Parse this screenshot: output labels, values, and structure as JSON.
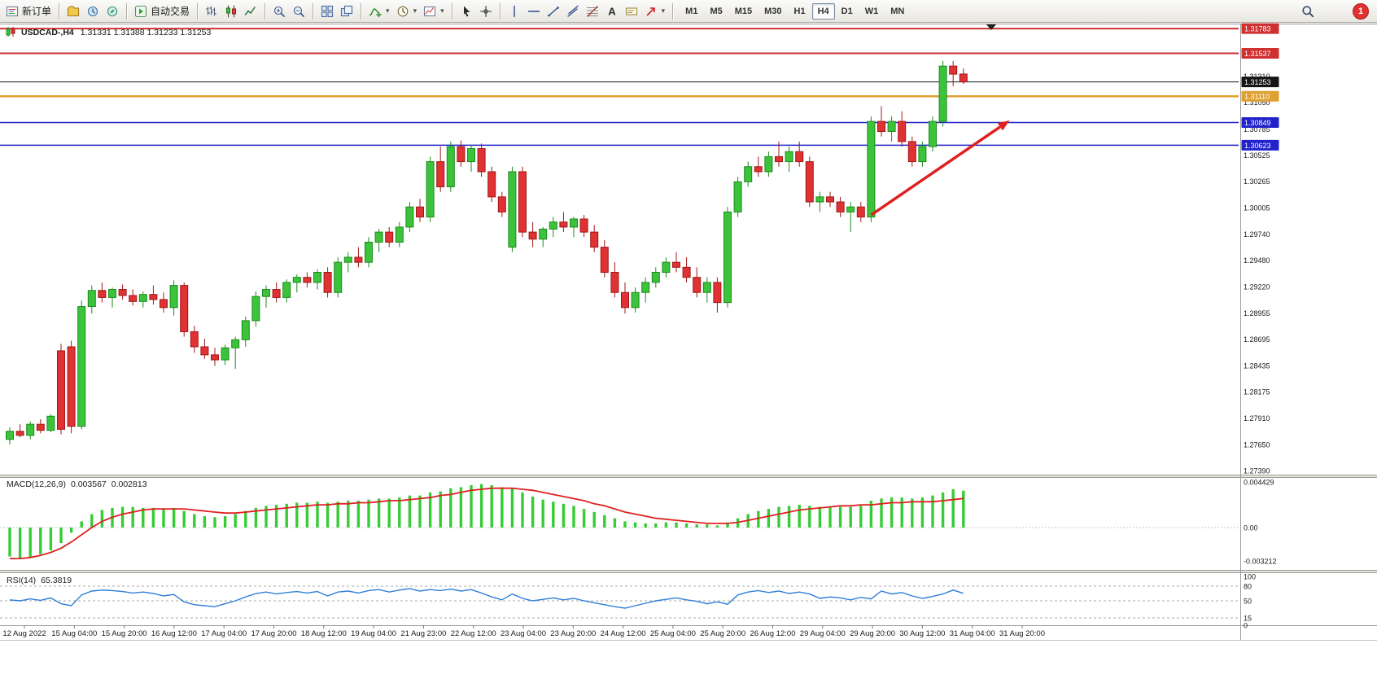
{
  "toolbar": {
    "new_order_label": "新订单",
    "auto_trading_label": "自动交易",
    "timeframes": [
      "M1",
      "M5",
      "M15",
      "M30",
      "H1",
      "H4",
      "D1",
      "W1",
      "MN"
    ],
    "active_timeframe": "H4",
    "notification_count": "1",
    "items": [
      {
        "type": "btn",
        "name": "new-order-button",
        "icon": "new-order",
        "label": "新订单"
      },
      {
        "type": "sep"
      },
      {
        "type": "btn",
        "name": "profiles-button",
        "icon": "profiles"
      },
      {
        "type": "btn",
        "name": "market-watch-button",
        "icon": "market-watch"
      },
      {
        "type": "btn",
        "name": "navigator-button",
        "icon": "navigator"
      },
      {
        "type": "sep"
      },
      {
        "type": "btn",
        "name": "auto-trading-button",
        "icon": "auto-trading",
        "label": "自动交易"
      },
      {
        "type": "sep"
      },
      {
        "type": "btn",
        "name": "bar-chart-button",
        "icon": "chart-bars"
      },
      {
        "type": "btn",
        "name": "candlestick-chart-button",
        "icon": "chart-candles"
      },
      {
        "type": "btn",
        "name": "line-chart-button",
        "icon": "chart-line"
      },
      {
        "type": "sep"
      },
      {
        "type": "btn",
        "name": "zoom-in-button",
        "icon": "zoom-in"
      },
      {
        "type": "btn",
        "name": "zoom-out-button",
        "icon": "zoom-out"
      },
      {
        "type": "sep"
      },
      {
        "type": "btn",
        "name": "tile-windows-button",
        "icon": "tile-windows"
      },
      {
        "type": "btn",
        "name": "cascade-windows-button",
        "icon": "cascade-windows"
      },
      {
        "type": "sep"
      },
      {
        "type": "btn",
        "name": "indicators-button",
        "icon": "indicators",
        "caret": true
      },
      {
        "type": "btn",
        "name": "periods-button",
        "icon": "periods",
        "caret": true
      },
      {
        "type": "btn",
        "name": "templates-button",
        "icon": "templates",
        "caret": true
      },
      {
        "type": "sep"
      },
      {
        "type": "btn",
        "name": "cursor-button",
        "icon": "cursor"
      },
      {
        "type": "btn",
        "name": "crosshair-button",
        "icon": "crosshair"
      },
      {
        "type": "sep"
      },
      {
        "type": "btn",
        "name": "vertical-line-button",
        "icon": "vline"
      },
      {
        "type": "btn",
        "name": "horizontal-line-button",
        "icon": "hline"
      },
      {
        "type": "btn",
        "name": "trendline-button",
        "icon": "trendline"
      },
      {
        "type": "btn",
        "name": "channel-button",
        "icon": "channel"
      },
      {
        "type": "btn",
        "name": "fibonacci-button",
        "icon": "fibo"
      },
      {
        "type": "btn",
        "name": "text-button",
        "icon": "text"
      },
      {
        "type": "btn",
        "name": "label-button",
        "icon": "label"
      },
      {
        "type": "btn",
        "name": "arrows-button",
        "icon": "arrows",
        "caret": true
      },
      {
        "type": "sep"
      },
      {
        "type": "tf"
      },
      {
        "type": "spacer"
      },
      {
        "type": "btn",
        "name": "search-button",
        "icon": "search"
      },
      {
        "type": "badge"
      }
    ]
  },
  "chart": {
    "symbol_period": "USDCAD-,H4",
    "ohlc_text": "1.31331 1.31388 1.31233 1.31253",
    "macd_name": "MACD(12,26,9)",
    "macd_value": "0.003567",
    "macd_signal": "0.002813",
    "rsi_name": "RSI(14)",
    "rsi_value": "65.3819"
  },
  "chart_data": {
    "type": "candlestick",
    "symbol": "USDCAD",
    "period": "H4",
    "price_range": {
      "top": 1.31824,
      "bottom": 1.2739
    },
    "price_axis_labels": [
      "1.31310",
      "1.31050",
      "1.30785",
      "1.30525",
      "1.30265",
      "1.30005",
      "1.29740",
      "1.29480",
      "1.29220",
      "1.28955",
      "1.28695",
      "1.28435",
      "1.28175",
      "1.27910",
      "1.27650",
      "1.27390"
    ],
    "line_levels": [
      {
        "value": 1.31783,
        "label": "1.31783",
        "color": "#cf3030",
        "width": 2
      },
      {
        "value": 1.31537,
        "label": "1.31537",
        "color": "#cf3030",
        "width": 2
      },
      {
        "value": 1.31253,
        "label": "1.31253",
        "color": "#151515",
        "width": 1
      },
      {
        "value": 1.3111,
        "label": "1.31110",
        "color": "#dfa032",
        "width": 2.5
      },
      {
        "value": 1.30849,
        "label": "1.30849",
        "color": "#2222cc",
        "width": 1.5
      },
      {
        "value": 1.30623,
        "label": "1.30623",
        "color": "#2222cc",
        "width": 1.5
      }
    ],
    "candles": [
      [
        1.277,
        1.2782,
        1.2765,
        1.2778
      ],
      [
        1.2778,
        1.2785,
        1.2772,
        1.2774
      ],
      [
        1.2774,
        1.2788,
        1.277,
        1.2785
      ],
      [
        1.2785,
        1.279,
        1.2776,
        1.2779
      ],
      [
        1.2779,
        1.2795,
        1.2777,
        1.2793
      ],
      [
        1.2858,
        1.2865,
        1.2775,
        1.278
      ],
      [
        1.2862,
        1.2868,
        1.2776,
        1.2783
      ],
      [
        1.2783,
        1.2908,
        1.278,
        1.2902
      ],
      [
        1.2902,
        1.2923,
        1.2895,
        1.2918
      ],
      [
        1.2918,
        1.2926,
        1.2906,
        1.2911
      ],
      [
        1.2911,
        1.2921,
        1.2901,
        1.2919
      ],
      [
        1.2919,
        1.2924,
        1.2909,
        1.2913
      ],
      [
        1.2913,
        1.2919,
        1.2903,
        1.2907
      ],
      [
        1.2907,
        1.2917,
        1.2901,
        1.2914
      ],
      [
        1.2914,
        1.2923,
        1.2904,
        1.2909
      ],
      [
        1.2909,
        1.2916,
        1.2896,
        1.2901
      ],
      [
        1.2901,
        1.2928,
        1.2893,
        1.2923
      ],
      [
        1.2923,
        1.2926,
        1.2872,
        1.2877
      ],
      [
        1.2877,
        1.2883,
        1.2856,
        1.2862
      ],
      [
        1.2862,
        1.287,
        1.285,
        1.2854
      ],
      [
        1.2854,
        1.2861,
        1.2843,
        1.2849
      ],
      [
        1.2849,
        1.2864,
        1.2844,
        1.2861
      ],
      [
        1.2861,
        1.2872,
        1.284,
        1.2869
      ],
      [
        1.2869,
        1.2892,
        1.2862,
        1.2888
      ],
      [
        1.2888,
        1.2917,
        1.2882,
        1.2912
      ],
      [
        1.2912,
        1.2923,
        1.2901,
        1.2919
      ],
      [
        1.2919,
        1.2926,
        1.2906,
        1.2911
      ],
      [
        1.2911,
        1.2929,
        1.2906,
        1.2926
      ],
      [
        1.2926,
        1.2934,
        1.2916,
        1.2931
      ],
      [
        1.2931,
        1.2936,
        1.2921,
        1.2926
      ],
      [
        1.2926,
        1.2939,
        1.2919,
        1.2936
      ],
      [
        1.2936,
        1.2941,
        1.2911,
        1.2916
      ],
      [
        1.2916,
        1.2951,
        1.2911,
        1.2946
      ],
      [
        1.2946,
        1.2956,
        1.2936,
        1.2951
      ],
      [
        1.2951,
        1.2961,
        1.2941,
        1.2946
      ],
      [
        1.2946,
        1.2971,
        1.2941,
        1.2966
      ],
      [
        1.2966,
        1.2979,
        1.2956,
        1.2976
      ],
      [
        1.2976,
        1.2981,
        1.2961,
        1.2966
      ],
      [
        1.2966,
        1.2986,
        1.2961,
        1.2981
      ],
      [
        1.2981,
        1.3006,
        1.2976,
        1.3001
      ],
      [
        1.3001,
        1.3009,
        1.2986,
        1.2991
      ],
      [
        1.2991,
        1.3051,
        1.2986,
        1.3046
      ],
      [
        1.3046,
        1.3061,
        1.3016,
        1.3021
      ],
      [
        1.3021,
        1.3066,
        1.3016,
        1.3061
      ],
      [
        1.3061,
        1.3067,
        1.3041,
        1.3046
      ],
      [
        1.3046,
        1.3063,
        1.3036,
        1.3059
      ],
      [
        1.3059,
        1.3064,
        1.3031,
        1.3036
      ],
      [
        1.3036,
        1.3041,
        1.3006,
        1.3011
      ],
      [
        1.3011,
        1.3016,
        1.2991,
        1.2996
      ],
      [
        1.2961,
        1.3041,
        1.2956,
        1.3036
      ],
      [
        1.3036,
        1.3041,
        1.2971,
        1.2976
      ],
      [
        1.2976,
        1.2986,
        1.2961,
        1.2969
      ],
      [
        1.2969,
        1.2981,
        1.2961,
        1.2979
      ],
      [
        1.2979,
        1.2991,
        1.2971,
        1.2986
      ],
      [
        1.2986,
        1.2996,
        1.2976,
        1.2981
      ],
      [
        1.2981,
        1.2991,
        1.2971,
        1.2989
      ],
      [
        1.2989,
        1.2993,
        1.2971,
        1.2976
      ],
      [
        1.2976,
        1.2983,
        1.2956,
        1.2961
      ],
      [
        1.2961,
        1.2968,
        1.2931,
        1.2936
      ],
      [
        1.2936,
        1.2946,
        1.2911,
        1.2916
      ],
      [
        1.2916,
        1.2926,
        1.2895,
        1.2901
      ],
      [
        1.2901,
        1.2921,
        1.2896,
        1.2916
      ],
      [
        1.2916,
        1.2931,
        1.2906,
        1.2926
      ],
      [
        1.2926,
        1.2941,
        1.2921,
        1.2936
      ],
      [
        1.2936,
        1.2951,
        1.2931,
        1.2946
      ],
      [
        1.2946,
        1.2956,
        1.2936,
        1.2941
      ],
      [
        1.2941,
        1.2951,
        1.2926,
        1.2931
      ],
      [
        1.2931,
        1.2941,
        1.2911,
        1.2916
      ],
      [
        1.2916,
        1.2931,
        1.2906,
        1.2926
      ],
      [
        1.2926,
        1.2931,
        1.2896,
        1.2906
      ],
      [
        1.2906,
        1.3001,
        1.2901,
        1.2996
      ],
      [
        1.2996,
        1.3031,
        1.2991,
        1.3026
      ],
      [
        1.3026,
        1.3046,
        1.3021,
        1.3041
      ],
      [
        1.3041,
        1.3051,
        1.3031,
        1.3036
      ],
      [
        1.3036,
        1.3056,
        1.3031,
        1.3051
      ],
      [
        1.3051,
        1.3066,
        1.3041,
        1.3046
      ],
      [
        1.3046,
        1.3061,
        1.3036,
        1.3056
      ],
      [
        1.3056,
        1.3066,
        1.3041,
        1.3046
      ],
      [
        1.3046,
        1.3051,
        1.3001,
        1.3006
      ],
      [
        1.3006,
        1.3016,
        1.2996,
        1.3011
      ],
      [
        1.3011,
        1.3016,
        1.3001,
        1.3006
      ],
      [
        1.3006,
        1.3011,
        1.2991,
        1.2996
      ],
      [
        1.2996,
        1.3006,
        1.2976,
        1.3001
      ],
      [
        1.3001,
        1.3006,
        1.2986,
        1.2991
      ],
      [
        1.2991,
        1.3091,
        1.2986,
        1.3086
      ],
      [
        1.3086,
        1.3101,
        1.3071,
        1.3076
      ],
      [
        1.3076,
        1.3091,
        1.3066,
        1.3086
      ],
      [
        1.3086,
        1.3096,
        1.3061,
        1.3066
      ],
      [
        1.3066,
        1.3071,
        1.3041,
        1.3046
      ],
      [
        1.3046,
        1.3066,
        1.3041,
        1.3061
      ],
      [
        1.3061,
        1.3091,
        1.3056,
        1.3086
      ],
      [
        1.3086,
        1.3146,
        1.3081,
        1.3141
      ],
      [
        1.3141,
        1.3146,
        1.3121,
        1.3133
      ],
      [
        1.31331,
        1.31388,
        1.31233,
        1.31253
      ]
    ],
    "macd": {
      "histogram": [
        -0.0028,
        -0.003,
        -0.0029,
        -0.0026,
        -0.0022,
        -0.0015,
        -0.0005,
        0.0006,
        0.0013,
        0.0017,
        0.0019,
        0.002,
        0.002,
        0.0019,
        0.0019,
        0.0018,
        0.0019,
        0.0016,
        0.0013,
        0.0011,
        0.001,
        0.0011,
        0.0013,
        0.0016,
        0.0019,
        0.0021,
        0.0022,
        0.0023,
        0.0024,
        0.0024,
        0.0025,
        0.0024,
        0.0025,
        0.0026,
        0.0026,
        0.0027,
        0.0028,
        0.0028,
        0.0029,
        0.0031,
        0.0031,
        0.0034,
        0.0035,
        0.0038,
        0.0039,
        0.0041,
        0.0042,
        0.0041,
        0.0039,
        0.0038,
        0.0034,
        0.003,
        0.0027,
        0.0025,
        0.0023,
        0.0021,
        0.0018,
        0.0015,
        0.0012,
        0.0009,
        0.0006,
        0.0005,
        0.0004,
        0.0004,
        0.0005,
        0.0005,
        0.0004,
        0.0003,
        0.0003,
        0.0002,
        0.0005,
        0.0009,
        0.0013,
        0.0016,
        0.0018,
        0.002,
        0.0021,
        0.0022,
        0.0021,
        0.002,
        0.002,
        0.002,
        0.002,
        0.0021,
        0.0026,
        0.0028,
        0.0029,
        0.0029,
        0.0028,
        0.0029,
        0.0031,
        0.0034,
        0.0037,
        0.003567
      ],
      "signal": [
        -0.003,
        -0.003,
        -0.0029,
        -0.0027,
        -0.0024,
        -0.002,
        -0.0014,
        -0.0007,
        0.0,
        0.0006,
        0.001,
        0.0013,
        0.0015,
        0.0017,
        0.0018,
        0.0018,
        0.0018,
        0.0018,
        0.0017,
        0.0016,
        0.0015,
        0.0014,
        0.0014,
        0.0015,
        0.0016,
        0.0017,
        0.0018,
        0.0019,
        0.002,
        0.0021,
        0.0022,
        0.0022,
        0.0023,
        0.0023,
        0.0024,
        0.0024,
        0.0025,
        0.0026,
        0.0026,
        0.0027,
        0.0028,
        0.0029,
        0.0031,
        0.0032,
        0.0034,
        0.0036,
        0.0037,
        0.0038,
        0.0038,
        0.0038,
        0.0037,
        0.0036,
        0.0034,
        0.0032,
        0.003,
        0.0028,
        0.0026,
        0.0023,
        0.0021,
        0.0018,
        0.0015,
        0.0013,
        0.0011,
        0.0009,
        0.0008,
        0.0007,
        0.0006,
        0.0005,
        0.0004,
        0.0004,
        0.0004,
        0.0005,
        0.0007,
        0.0009,
        0.0011,
        0.0013,
        0.0015,
        0.0017,
        0.0018,
        0.0019,
        0.002,
        0.0021,
        0.0021,
        0.0022,
        0.0022,
        0.0023,
        0.0024,
        0.0024,
        0.0025,
        0.0025,
        0.0025,
        0.0026,
        0.0027,
        0.002813
      ],
      "axis_labels": [
        "0.004429",
        "0.00",
        "-0.003212"
      ]
    },
    "rsi": {
      "values": [
        52,
        50,
        54,
        51,
        56,
        44,
        40,
        62,
        70,
        72,
        71,
        69,
        66,
        68,
        65,
        60,
        63,
        48,
        42,
        40,
        38,
        44,
        50,
        58,
        65,
        68,
        64,
        67,
        69,
        66,
        69,
        60,
        68,
        70,
        66,
        71,
        73,
        68,
        72,
        75,
        70,
        73,
        71,
        74,
        70,
        73,
        66,
        58,
        52,
        64,
        55,
        50,
        53,
        56,
        52,
        55,
        50,
        46,
        42,
        38,
        35,
        40,
        45,
        50,
        53,
        56,
        52,
        49,
        44,
        48,
        43,
        62,
        68,
        71,
        67,
        70,
        65,
        68,
        64,
        55,
        58,
        56,
        52,
        57,
        54,
        70,
        64,
        67,
        60,
        55,
        59,
        64,
        72,
        65.3819
      ],
      "levels": [
        80,
        50,
        15
      ],
      "axis_labels": [
        "100",
        "80",
        "50",
        "15",
        "0"
      ]
    },
    "time_labels": [
      "12 Aug 2022",
      "15 Aug 04:00",
      "15 Aug 20:00",
      "16 Aug 12:00",
      "17 Aug 04:00",
      "17 Aug 20:00",
      "18 Aug 12:00",
      "19 Aug 04:00",
      "21 Aug 23:00",
      "22 Aug 12:00",
      "23 Aug 04:00",
      "23 Aug 20:00",
      "24 Aug 12:00",
      "25 Aug 04:00",
      "25 Aug 20:00",
      "26 Aug 12:00",
      "29 Aug 04:00",
      "29 Aug 20:00",
      "30 Aug 12:00",
      "31 Aug 04:00",
      "31 Aug 20:00"
    ],
    "colors": {
      "up": "#3bc43b",
      "down": "#e03232",
      "up_border": "#1e8a1e",
      "down_border": "#a01818",
      "macd_hist": "#35cc35",
      "macd_signal": "#e02020",
      "rsi_line": "#2f7ed8",
      "arrow": "#e02020"
    },
    "arrow_annotation": {
      "from_index": 84,
      "from_price": 1.2993,
      "to_index": 97.5,
      "to_price": 1.3087
    }
  }
}
